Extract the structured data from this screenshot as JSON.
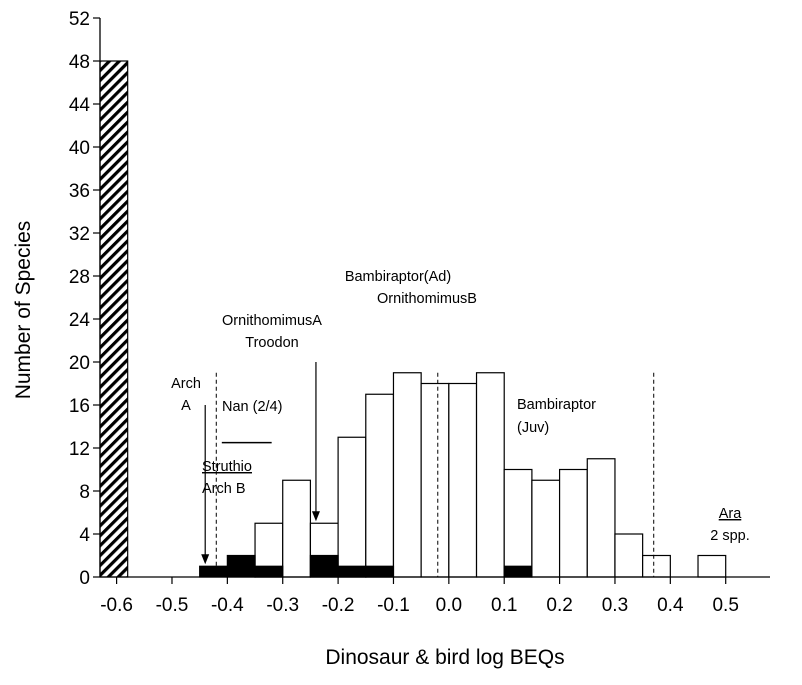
{
  "chart_data": {
    "type": "bar",
    "xlabel": "Dinosaur & bird log BEQs",
    "ylabel": "Number of Species",
    "xlim": [
      -0.63,
      0.58
    ],
    "ylim": [
      0,
      52
    ],
    "x_ticks": [
      {
        "v": -0.6,
        "label": "-0.6"
      },
      {
        "v": -0.5,
        "label": "-0.5"
      },
      {
        "v": -0.4,
        "label": "-0.4"
      },
      {
        "v": -0.3,
        "label": "-0.3"
      },
      {
        "v": -0.2,
        "label": "-0.2"
      },
      {
        "v": -0.1,
        "label": "-0.1"
      },
      {
        "v": 0.0,
        "label": "0.0"
      },
      {
        "v": 0.1,
        "label": "0.1"
      },
      {
        "v": 0.2,
        "label": "0.2"
      },
      {
        "v": 0.3,
        "label": "0.3"
      },
      {
        "v": 0.4,
        "label": "0.4"
      },
      {
        "v": 0.5,
        "label": "0.5"
      }
    ],
    "y_ticks": [
      {
        "v": 0,
        "label": "0"
      },
      {
        "v": 4,
        "label": "4"
      },
      {
        "v": 8,
        "label": "8"
      },
      {
        "v": 12,
        "label": "12"
      },
      {
        "v": 16,
        "label": "16"
      },
      {
        "v": 20,
        "label": "20"
      },
      {
        "v": 24,
        "label": "24"
      },
      {
        "v": 28,
        "label": "28"
      },
      {
        "v": 32,
        "label": "32"
      },
      {
        "v": 36,
        "label": "36"
      },
      {
        "v": 40,
        "label": "40"
      },
      {
        "v": 44,
        "label": "44"
      },
      {
        "v": 48,
        "label": "48"
      },
      {
        "v": 52,
        "label": "52"
      }
    ],
    "bin_width": 0.05,
    "series": [
      {
        "style": "hatched",
        "bins": [
          {
            "x0": -0.63,
            "x1": -0.58,
            "value": 48
          }
        ]
      },
      {
        "style": "open",
        "bins": [
          {
            "x0": -0.35,
            "x1": -0.3,
            "value": 5
          },
          {
            "x0": -0.3,
            "x1": -0.25,
            "value": 9
          },
          {
            "x0": -0.25,
            "x1": -0.2,
            "value": 5
          },
          {
            "x0": -0.2,
            "x1": -0.15,
            "value": 13
          },
          {
            "x0": -0.15,
            "x1": -0.1,
            "value": 17
          },
          {
            "x0": -0.1,
            "x1": -0.05,
            "value": 19
          },
          {
            "x0": -0.05,
            "x1": 0.0,
            "value": 18
          },
          {
            "x0": 0.0,
            "x1": 0.05,
            "value": 18
          },
          {
            "x0": 0.05,
            "x1": 0.1,
            "value": 19
          },
          {
            "x0": 0.1,
            "x1": 0.15,
            "value": 10
          },
          {
            "x0": 0.15,
            "x1": 0.2,
            "value": 9
          },
          {
            "x0": 0.2,
            "x1": 0.25,
            "value": 10
          },
          {
            "x0": 0.25,
            "x1": 0.3,
            "value": 11
          },
          {
            "x0": 0.3,
            "x1": 0.35,
            "value": 4
          },
          {
            "x0": 0.35,
            "x1": 0.4,
            "value": 2
          },
          {
            "x0": 0.45,
            "x1": 0.5,
            "value": 2
          }
        ]
      },
      {
        "style": "filled",
        "bins": [
          {
            "x0": -0.45,
            "x1": -0.4,
            "value": 1
          },
          {
            "x0": -0.4,
            "x1": -0.35,
            "value": 2
          },
          {
            "x0": -0.35,
            "x1": -0.3,
            "value": 1
          },
          {
            "x0": -0.25,
            "x1": -0.2,
            "value": 2
          },
          {
            "x0": -0.2,
            "x1": -0.15,
            "value": 1
          },
          {
            "x0": -0.15,
            "x1": -0.1,
            "value": 1
          },
          {
            "x0": 0.1,
            "x1": 0.15,
            "value": 1
          }
        ]
      }
    ],
    "reference_lines": [
      -0.42,
      -0.02,
      0.37
    ],
    "nan_range": [
      -0.41,
      -0.32
    ],
    "nan_y": 12.5,
    "arrows": [
      {
        "x": -0.44,
        "y_from": 16,
        "y_to": 1
      },
      {
        "x": -0.24,
        "y_from": 20,
        "y_to": 5
      }
    ],
    "annotations": {
      "arch_a_line1": "Arch",
      "arch_a_line2": "A",
      "ornithomimus_a": "OrnithomimusA",
      "troodon": "Troodon",
      "nan": "Nan (2/4)",
      "struthio": "Struthio",
      "arch_b": "Arch B",
      "bambiraptor_ad": "Bambiraptor(Ad)",
      "ornithomimus_b": "OrnithomimusB",
      "bambiraptor": "Bambiraptor",
      "juv": "(Juv)",
      "ara": "Ara",
      "two_spp": "2 spp."
    }
  }
}
